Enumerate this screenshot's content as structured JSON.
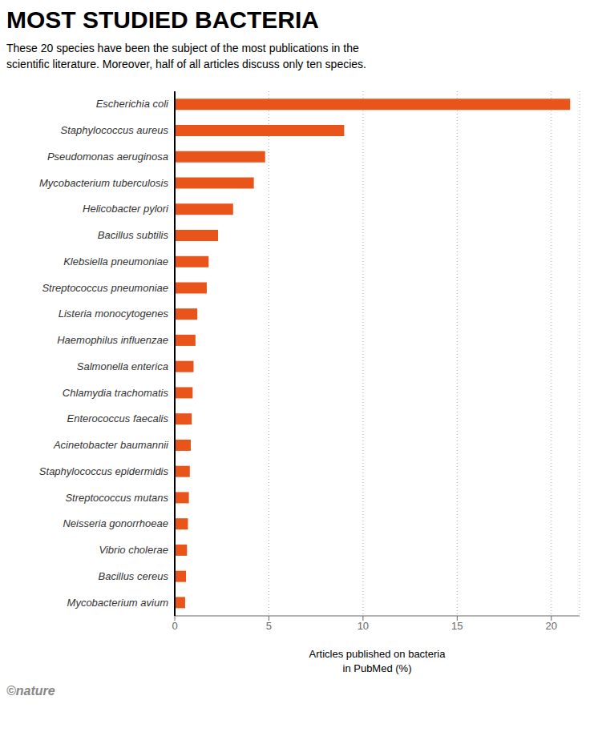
{
  "chart_data": {
    "type": "bar",
    "orientation": "horizontal",
    "title": "MOST STUDIED BACTERIA",
    "subtitle": "These 20 species have been the subject of the most publications in the\nscientific literature. Moreover, half of all articles discuss only ten species.",
    "xlabel": "Articles published on bacteria\nin PubMed (%)",
    "categories": [
      "Escherichia coli",
      "Staphylococcus aureus",
      "Pseudomonas aeruginosa",
      "Mycobacterium tuberculosis",
      "Helicobacter pylori",
      "Bacillus subtilis",
      "Klebsiella pneumoniae",
      "Streptococcus pneumoniae",
      "Listeria monocytogenes",
      "Haemophilus influenzae",
      "Salmonella enterica",
      "Chlamydia trachomatis",
      "Enterococcus faecalis",
      "Acinetobacter baumannii",
      "Staphylococcus epidermidis",
      "Streptococcus mutans",
      "Neisseria gonorrhoeae",
      "Vibrio cholerae",
      "Bacillus cereus",
      "Mycobacterium avium"
    ],
    "values": [
      21.0,
      9.0,
      4.8,
      4.2,
      3.1,
      2.3,
      1.8,
      1.7,
      1.2,
      1.1,
      1.0,
      0.95,
      0.9,
      0.85,
      0.8,
      0.75,
      0.7,
      0.65,
      0.6,
      0.55
    ],
    "color": "#E8541A",
    "xlim": [
      0,
      21.5
    ],
    "xticks": [
      0,
      5,
      10,
      15,
      20
    ],
    "grid": true,
    "annotations": [
      "©nature"
    ]
  }
}
